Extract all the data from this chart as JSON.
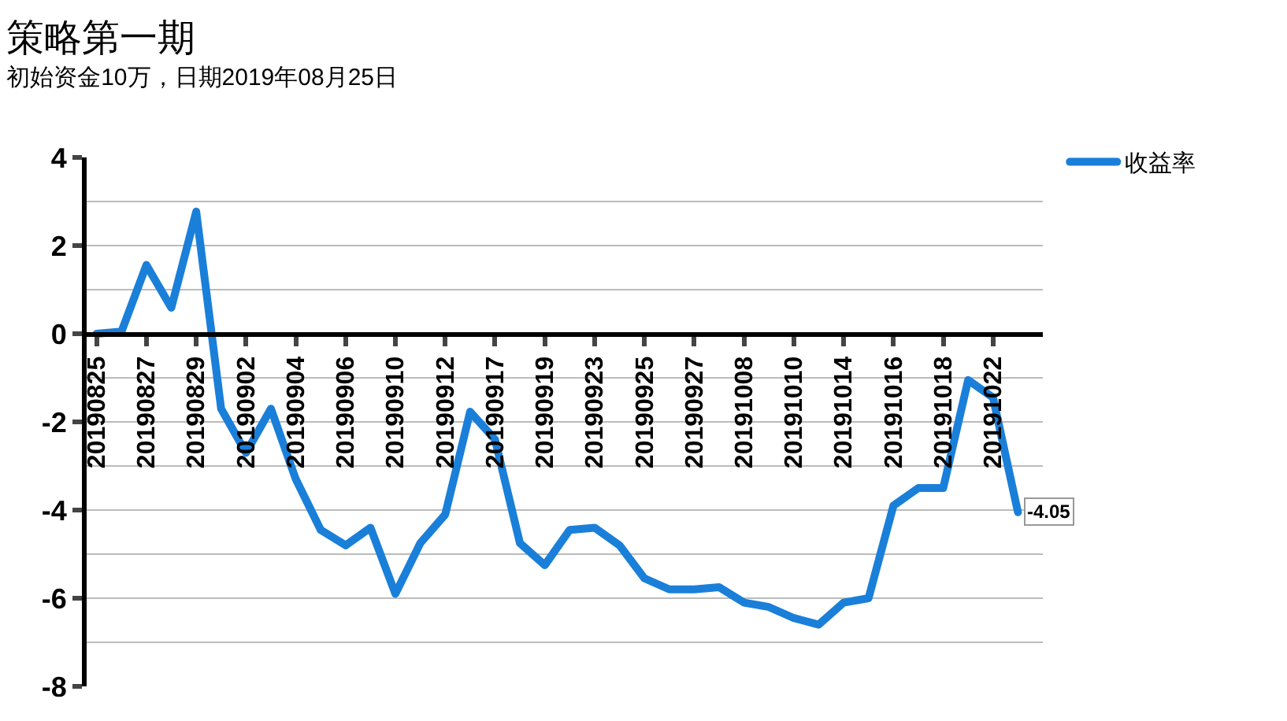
{
  "chart_data": {
    "type": "line",
    "title": "策略第一期",
    "subtitle": "初始资金10万，日期2019年08月25日",
    "categories": [
      "20190825",
      null,
      "20190827",
      null,
      "20190829",
      null,
      "20190902",
      null,
      "20190904",
      null,
      "20190906",
      null,
      "20190910",
      null,
      "20190912",
      null,
      "20190917",
      null,
      "20190919",
      null,
      "20190923",
      null,
      "20190925",
      null,
      "20190927",
      null,
      "20191008",
      null,
      "20191010",
      null,
      "20191014",
      null,
      "20191016",
      null,
      "20191018",
      null,
      "20191022",
      null
    ],
    "series": [
      {
        "name": "收益率",
        "color": "#1a7fd9",
        "values": [
          0,
          0.05,
          1.56,
          0.59,
          2.77,
          -1.7,
          -2.7,
          -1.7,
          -3.3,
          -4.45,
          -4.8,
          -4.4,
          -5.9,
          -4.75,
          -4.1,
          -1.77,
          -2.4,
          -4.75,
          -5.25,
          -4.45,
          -4.4,
          -4.8,
          -5.55,
          -5.8,
          -5.8,
          -5.75,
          -6.1,
          -6.2,
          -6.45,
          -6.6,
          -6.1,
          -6.0,
          -3.9,
          -3.5,
          -3.5,
          -1.05,
          -1.45,
          -4.05
        ],
        "value_labels": [
          null,
          null,
          null,
          null,
          null,
          null,
          null,
          null,
          null,
          null,
          null,
          null,
          null,
          null,
          null,
          null,
          null,
          null,
          null,
          null,
          null,
          null,
          null,
          null,
          null,
          null,
          null,
          null,
          null,
          null,
          null,
          null,
          null,
          null,
          null,
          null,
          null,
          "-4.05"
        ]
      }
    ],
    "ylim": [
      -8,
      4
    ],
    "yticks": [
      -8,
      {
        "value": -7,
        "label": null
      },
      -6,
      {
        "value": -5,
        "label": null
      },
      -4,
      {
        "value": -3,
        "label": null
      },
      -2,
      {
        "value": -1,
        "label": null
      },
      0,
      {
        "value": 1,
        "label": null
      },
      2,
      {
        "value": 3,
        "label": null
      },
      4
    ],
    "grid": "y",
    "legend": "top right",
    "marker": "none",
    "line_style": "solid"
  }
}
